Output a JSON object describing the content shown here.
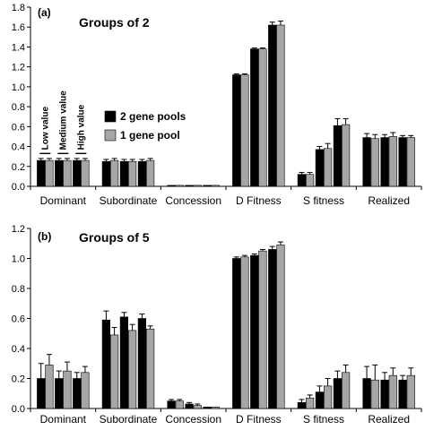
{
  "chart_data": [
    {
      "type": "bar",
      "panel_label": "(a)",
      "title": "Groups of 2",
      "categories": [
        "Dominant",
        "Subordinate",
        "Concession",
        "D Fitness",
        "S fitness",
        "Realized"
      ],
      "ylim": [
        0,
        1.8
      ],
      "yticks": [
        "0.0",
        "0.2",
        "0.4",
        "0.6",
        "0.8",
        "1.0",
        "1.2",
        "1.4",
        "1.6",
        "1.8"
      ],
      "value_levels": [
        "Low value",
        "Medium value",
        "High value"
      ],
      "legend": [
        "2 gene pools",
        "1 gene pool"
      ],
      "colors": {
        "2 gene pools": "#000000",
        "1 gene pool": "#a6a6a6"
      },
      "bars": [
        {
          "v": 0.26,
          "e": 0.02
        },
        {
          "v": 0.26,
          "e": 0.02
        },
        {
          "v": 0.26,
          "e": 0.02
        },
        {
          "v": 0.26,
          "e": 0.02
        },
        {
          "v": 0.26,
          "e": 0.02
        },
        {
          "v": 0.26,
          "e": 0.02
        },
        {
          "v": 0.25,
          "e": 0.02
        },
        {
          "v": 0.26,
          "e": 0.02
        },
        {
          "v": 0.25,
          "e": 0.02
        },
        {
          "v": 0.25,
          "e": 0.02
        },
        {
          "v": 0.25,
          "e": 0.02
        },
        {
          "v": 0.26,
          "e": 0.02
        },
        {
          "v": 0.01,
          "e": 0.0
        },
        {
          "v": 0.01,
          "e": 0.0
        },
        {
          "v": 0.01,
          "e": 0.0
        },
        {
          "v": 0.01,
          "e": 0.0
        },
        {
          "v": 0.01,
          "e": 0.0
        },
        {
          "v": 0.01,
          "e": 0.0
        },
        {
          "v": 1.12,
          "e": 0.01
        },
        {
          "v": 1.12,
          "e": 0.01
        },
        {
          "v": 1.38,
          "e": 0.01
        },
        {
          "v": 1.38,
          "e": 0.01
        },
        {
          "v": 1.62,
          "e": 0.03
        },
        {
          "v": 1.62,
          "e": 0.04
        },
        {
          "v": 0.12,
          "e": 0.02
        },
        {
          "v": 0.12,
          "e": 0.02
        },
        {
          "v": 0.37,
          "e": 0.03
        },
        {
          "v": 0.38,
          "e": 0.05
        },
        {
          "v": 0.61,
          "e": 0.07
        },
        {
          "v": 0.62,
          "e": 0.06
        },
        {
          "v": 0.49,
          "e": 0.04
        },
        {
          "v": 0.48,
          "e": 0.04
        },
        {
          "v": 0.49,
          "e": 0.03
        },
        {
          "v": 0.5,
          "e": 0.04
        },
        {
          "v": 0.49,
          "e": 0.02
        },
        {
          "v": 0.49,
          "e": 0.02
        }
      ]
    },
    {
      "type": "bar",
      "panel_label": "(b)",
      "title": "Groups of 5",
      "categories": [
        "Dominant",
        "Subordinate",
        "Concession",
        "D Fitness",
        "S fitness",
        "Realized"
      ],
      "ylim": [
        0,
        1.2
      ],
      "yticks": [
        "0.0",
        "0.2",
        "0.4",
        "0.6",
        "0.8",
        "1.0",
        "1.2"
      ],
      "legend": [
        "2 gene pools",
        "1 gene pool"
      ],
      "colors": {
        "2 gene pools": "#000000",
        "1 gene pool": "#a6a6a6"
      },
      "bars": [
        {
          "v": 0.2,
          "e": 0.1
        },
        {
          "v": 0.29,
          "e": 0.07
        },
        {
          "v": 0.2,
          "e": 0.05
        },
        {
          "v": 0.25,
          "e": 0.06
        },
        {
          "v": 0.2,
          "e": 0.04
        },
        {
          "v": 0.24,
          "e": 0.04
        },
        {
          "v": 0.59,
          "e": 0.06
        },
        {
          "v": 0.49,
          "e": 0.05
        },
        {
          "v": 0.61,
          "e": 0.03
        },
        {
          "v": 0.52,
          "e": 0.04
        },
        {
          "v": 0.6,
          "e": 0.03
        },
        {
          "v": 0.53,
          "e": 0.02
        },
        {
          "v": 0.05,
          "e": 0.01
        },
        {
          "v": 0.05,
          "e": 0.01
        },
        {
          "v": 0.03,
          "e": 0.01
        },
        {
          "v": 0.02,
          "e": 0.01
        },
        {
          "v": 0.01,
          "e": 0.0
        },
        {
          "v": 0.01,
          "e": 0.0
        },
        {
          "v": 1.0,
          "e": 0.01
        },
        {
          "v": 1.01,
          "e": 0.01
        },
        {
          "v": 1.02,
          "e": 0.01
        },
        {
          "v": 1.05,
          "e": 0.01
        },
        {
          "v": 1.06,
          "e": 0.02
        },
        {
          "v": 1.09,
          "e": 0.02
        },
        {
          "v": 0.04,
          "e": 0.02
        },
        {
          "v": 0.07,
          "e": 0.02
        },
        {
          "v": 0.11,
          "e": 0.04
        },
        {
          "v": 0.15,
          "e": 0.05
        },
        {
          "v": 0.2,
          "e": 0.05
        },
        {
          "v": 0.24,
          "e": 0.05
        },
        {
          "v": 0.2,
          "e": 0.08
        },
        {
          "v": 0.19,
          "e": 0.1
        },
        {
          "v": 0.19,
          "e": 0.05
        },
        {
          "v": 0.22,
          "e": 0.05
        },
        {
          "v": 0.19,
          "e": 0.03
        },
        {
          "v": 0.22,
          "e": 0.05
        }
      ]
    }
  ]
}
